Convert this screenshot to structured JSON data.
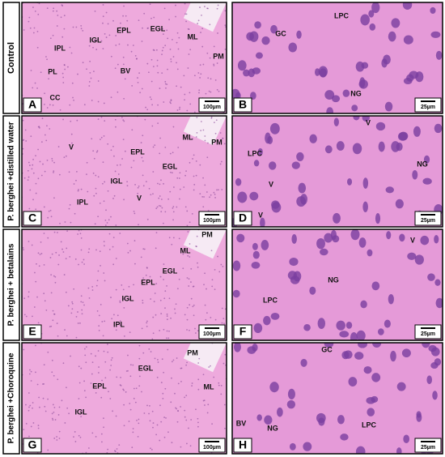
{
  "rows": [
    {
      "label": "Control",
      "panels": [
        {
          "letter": "A",
          "scale": "100µm",
          "labels": [
            "EPL",
            "EGL",
            "ML",
            "PM",
            "IPL",
            "IGL",
            "PL",
            "BV",
            "CC"
          ]
        },
        {
          "letter": "B",
          "scale": "25µm",
          "labels": [
            "GC",
            "LPC",
            "NG"
          ]
        }
      ]
    },
    {
      "label": "P. berghei +distilled water",
      "panels": [
        {
          "letter": "C",
          "scale": "100µm",
          "labels": [
            "V",
            "EPL",
            "ML",
            "PM",
            "EGL",
            "IGL",
            "IPL",
            "V"
          ]
        },
        {
          "letter": "D",
          "scale": "25µm",
          "labels": [
            "V",
            "LPC",
            "NG",
            "V",
            "V"
          ]
        }
      ]
    },
    {
      "label": "P. berghei + betalains",
      "panels": [
        {
          "letter": "E",
          "scale": "100µm",
          "labels": [
            "PM",
            "ML",
            "EGL",
            "EPL",
            "IGL",
            "IPL"
          ]
        },
        {
          "letter": "F",
          "scale": "25µm",
          "labels": [
            "V",
            "NG",
            "LPC"
          ]
        }
      ]
    },
    {
      "label": "P. berghei +Choroquine",
      "panels": [
        {
          "letter": "G",
          "scale": "100µm",
          "labels": [
            "PM",
            "EGL",
            "EPL",
            "ML",
            "IGL"
          ]
        },
        {
          "letter": "H",
          "scale": "25µm",
          "labels": [
            "GC",
            "BV",
            "NG",
            "LPC"
          ]
        }
      ]
    }
  ]
}
